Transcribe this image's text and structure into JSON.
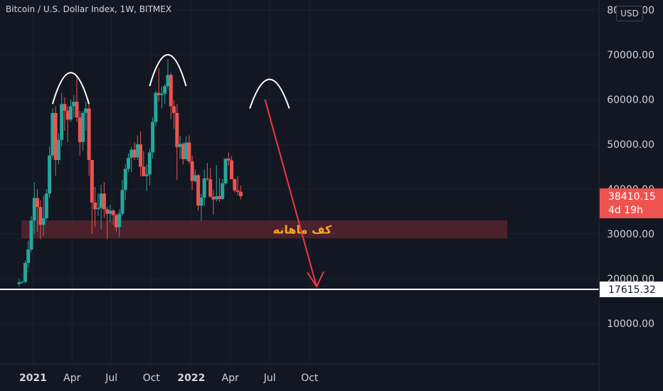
{
  "title": "Bitcoin / U.S. Dollar Index, 1W, BITMEX",
  "currency_button": "USD",
  "price_label": {
    "value": "38410.15",
    "countdown": "4d 19h"
  },
  "line_label": "17615.32",
  "support_zone_label": "کف ماهانه",
  "colors": {
    "up": "#26a69a",
    "down": "#ef5350",
    "zone": "#5a2630",
    "zone_text": "#f5a623",
    "arrow": "#f23645",
    "line": "#ffffff",
    "bg": "#131722"
  },
  "chart_data": {
    "type": "candlestick",
    "title": "Bitcoin / U.S. Dollar Index, 1W, BITMEX",
    "y_ticks": [
      "80000.00",
      "70000.00",
      "60000.00",
      "50000.00",
      "40000.00",
      "30000.00",
      "20000.00",
      "10000.00"
    ],
    "y_tick_values": [
      80000,
      70000,
      60000,
      50000,
      40000,
      30000,
      20000,
      10000
    ],
    "ylim": [
      0,
      80000
    ],
    "x_ticks": [
      {
        "label": "2021",
        "date": "2021-01-01"
      },
      {
        "label": "Apr",
        "date": "2021-04-01"
      },
      {
        "label": "Jul",
        "date": "2021-07-01"
      },
      {
        "label": "Oct",
        "date": "2021-10-01"
      },
      {
        "label": "2022",
        "date": "2022-01-01"
      },
      {
        "label": "Apr",
        "date": "2022-04-01"
      },
      {
        "label": "Jul",
        "date": "2022-07-01"
      },
      {
        "label": "Oct",
        "date": "2022-10-01"
      }
    ],
    "horizontal_line": 17615.32,
    "support_zone": [
      29000,
      33000
    ],
    "last_price": 38410.15,
    "candles": [
      [
        "2020-11-30",
        18800,
        19900,
        18300,
        19200
      ],
      [
        "2020-12-07",
        19200,
        19500,
        18900,
        19300
      ],
      [
        "2020-12-14",
        19300,
        24000,
        19000,
        23500
      ],
      [
        "2020-12-21",
        23500,
        28500,
        22500,
        26500
      ],
      [
        "2020-12-28",
        26500,
        34000,
        26000,
        33000
      ],
      [
        "2021-01-04",
        33000,
        41500,
        30000,
        38000
      ],
      [
        "2021-01-11",
        38000,
        40000,
        30500,
        36000
      ],
      [
        "2021-01-18",
        36000,
        37500,
        28800,
        32000
      ],
      [
        "2021-01-25",
        32000,
        38500,
        29500,
        33500
      ],
      [
        "2021-02-01",
        33500,
        40000,
        33000,
        39000
      ],
      [
        "2021-02-08",
        39000,
        49500,
        38000,
        47500
      ],
      [
        "2021-02-15",
        47500,
        58000,
        47000,
        57000
      ],
      [
        "2021-02-22",
        57000,
        58500,
        43000,
        46500
      ],
      [
        "2021-03-01",
        46500,
        52500,
        45500,
        51000
      ],
      [
        "2021-03-08",
        51000,
        61500,
        49500,
        59000
      ],
      [
        "2021-03-15",
        59000,
        60500,
        53000,
        57500
      ],
      [
        "2021-03-22",
        57500,
        58500,
        50500,
        55500
      ],
      [
        "2021-03-29",
        55500,
        60000,
        55000,
        58500
      ],
      [
        "2021-04-05",
        58500,
        61000,
        56000,
        59500
      ],
      [
        "2021-04-12",
        59500,
        64900,
        55000,
        56000
      ],
      [
        "2021-04-19",
        56000,
        57500,
        47500,
        50500
      ],
      [
        "2021-04-26",
        50500,
        57500,
        48500,
        57000
      ],
      [
        "2021-05-03",
        57000,
        59500,
        53000,
        58000
      ],
      [
        "2021-05-10",
        58000,
        59500,
        43000,
        46500
      ],
      [
        "2021-05-17",
        46500,
        46500,
        30000,
        37000
      ],
      [
        "2021-05-24",
        37000,
        40500,
        31500,
        35500
      ],
      [
        "2021-05-31",
        35500,
        39000,
        34000,
        35800
      ],
      [
        "2021-06-07",
        35800,
        41000,
        31000,
        39000
      ],
      [
        "2021-06-14",
        39000,
        41500,
        33500,
        35500
      ],
      [
        "2021-06-21",
        35500,
        36000,
        28800,
        34500
      ],
      [
        "2021-06-28",
        34500,
        36500,
        32500,
        35200
      ],
      [
        "2021-07-05",
        35200,
        35500,
        32000,
        34200
      ],
      [
        "2021-07-12",
        34200,
        34500,
        30500,
        31500
      ],
      [
        "2021-07-19",
        31500,
        35500,
        29300,
        34500
      ],
      [
        "2021-07-26",
        34500,
        42000,
        34000,
        39800
      ],
      [
        "2021-08-02",
        39800,
        45500,
        37500,
        44500
      ],
      [
        "2021-08-09",
        44500,
        48000,
        43800,
        47000
      ],
      [
        "2021-08-16",
        47000,
        49500,
        43800,
        48800
      ],
      [
        "2021-08-23",
        48800,
        50500,
        46500,
        47100
      ],
      [
        "2021-08-30",
        47100,
        52000,
        46500,
        50000
      ],
      [
        "2021-09-06",
        50000,
        52800,
        42800,
        45000
      ],
      [
        "2021-09-13",
        45000,
        48500,
        43000,
        42900
      ],
      [
        "2021-09-20",
        42900,
        45500,
        39600,
        43300
      ],
      [
        "2021-09-27",
        43300,
        49000,
        40800,
        48200
      ],
      [
        "2021-10-04",
        48200,
        56000,
        46800,
        55000
      ],
      [
        "2021-10-11",
        55000,
        62000,
        54000,
        61500
      ],
      [
        "2021-10-18",
        61500,
        67000,
        59500,
        61000
      ],
      [
        "2021-10-25",
        61000,
        63000,
        58000,
        61300
      ],
      [
        "2021-11-01",
        61300,
        63500,
        59000,
        63000
      ],
      [
        "2021-11-08",
        63000,
        69000,
        62300,
        65500
      ],
      [
        "2021-11-15",
        65500,
        66000,
        55600,
        58500
      ],
      [
        "2021-11-22",
        58500,
        59800,
        53500,
        57000
      ],
      [
        "2021-11-29",
        57000,
        59000,
        42000,
        49400
      ],
      [
        "2021-12-06",
        49400,
        51900,
        46800,
        50100
      ],
      [
        "2021-12-13",
        50100,
        50500,
        45500,
        46700
      ],
      [
        "2021-12-20",
        46700,
        51800,
        46300,
        50400
      ],
      [
        "2021-12-27",
        50400,
        52000,
        45700,
        46200
      ],
      [
        "2022-01-03",
        46200,
        47500,
        39700,
        41800
      ],
      [
        "2022-01-10",
        41800,
        44400,
        41500,
        43100
      ],
      [
        "2022-01-17",
        43100,
        43400,
        35200,
        36300
      ],
      [
        "2022-01-24",
        36300,
        38900,
        32900,
        38100
      ],
      [
        "2022-01-31",
        38100,
        44400,
        36300,
        42400
      ],
      [
        "2022-02-07",
        42400,
        45800,
        41800,
        42200
      ],
      [
        "2022-02-14",
        42200,
        44700,
        38100,
        38300
      ],
      [
        "2022-02-21",
        38300,
        39800,
        34300,
        37700
      ],
      [
        "2022-02-28",
        37700,
        45400,
        37300,
        38400
      ],
      [
        "2022-03-07",
        38400,
        42500,
        37200,
        37800
      ],
      [
        "2022-03-14",
        37800,
        42300,
        37600,
        41300
      ],
      [
        "2022-03-21",
        41300,
        46900,
        40900,
        46800
      ],
      [
        "2022-03-28",
        46800,
        48200,
        45300,
        46400
      ],
      [
        "2022-04-04",
        46400,
        47400,
        42200,
        42200
      ],
      [
        "2022-04-11",
        42200,
        42400,
        39200,
        39700
      ],
      [
        "2022-04-18",
        39700,
        42900,
        38600,
        39400
      ],
      [
        "2022-04-25",
        39400,
        40800,
        37700,
        38410
      ]
    ],
    "annotations": {
      "arcs": [
        {
          "from": "2021-02-15",
          "to": "2021-05-10",
          "peak": 66000,
          "base": 59000
        },
        {
          "from": "2021-09-27",
          "to": "2021-12-20",
          "peak": 70000,
          "base": 63000
        },
        {
          "from": "2022-05-16",
          "to": "2022-08-15",
          "peak": 64500,
          "base": 58000
        }
      ],
      "arrow": {
        "from_date": "2022-06-20",
        "from_value": 60000,
        "to_date": "2022-10-17",
        "to_value": 17615.32
      }
    }
  }
}
